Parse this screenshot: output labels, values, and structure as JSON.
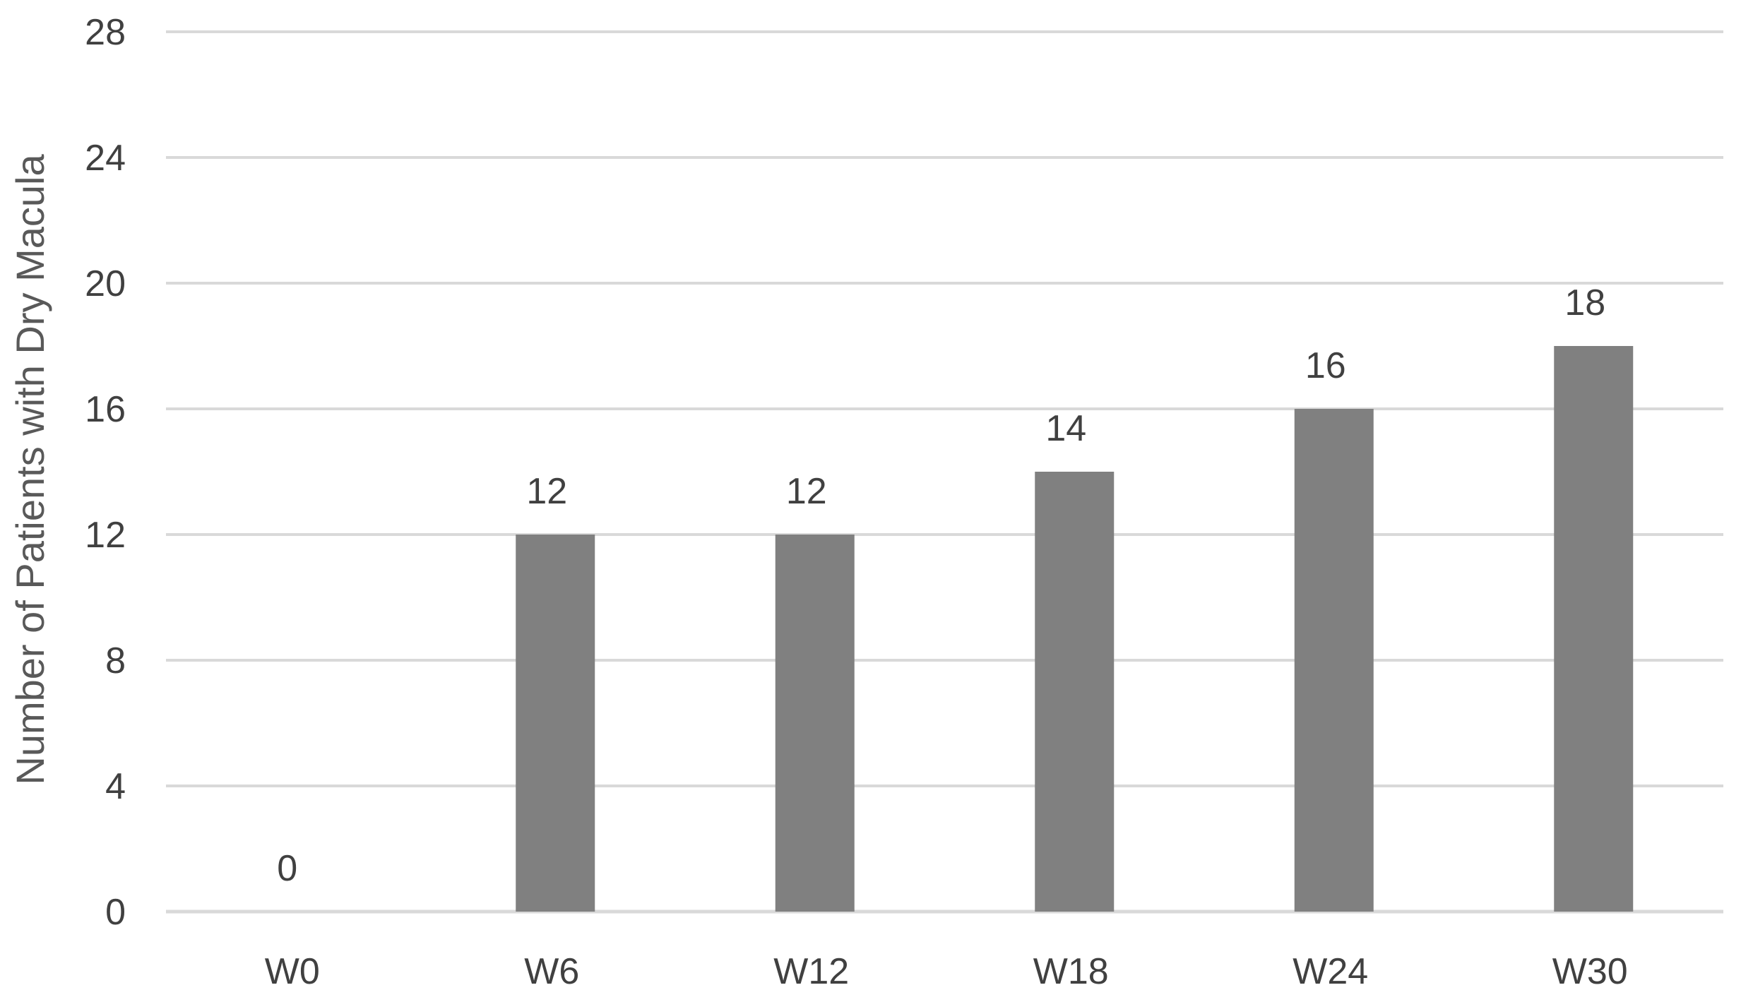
{
  "chart_data": {
    "type": "bar",
    "title": "",
    "xlabel": "",
    "ylabel": "Number of Patients with Dry Macula",
    "categories": [
      "W0",
      "W6",
      "W12",
      "W18",
      "W24",
      "W30"
    ],
    "values": [
      0,
      12,
      12,
      14,
      16,
      18
    ],
    "data_labels": [
      "0",
      "12",
      "12",
      "14",
      "16",
      "18"
    ],
    "ylim": [
      0,
      28
    ],
    "yticks": [
      0,
      4,
      8,
      12,
      16,
      20,
      24,
      28
    ],
    "grid": true,
    "legend": "none",
    "colors": {
      "bar": "#808080",
      "grid": "#d9d9d9",
      "text": "#404040"
    }
  }
}
